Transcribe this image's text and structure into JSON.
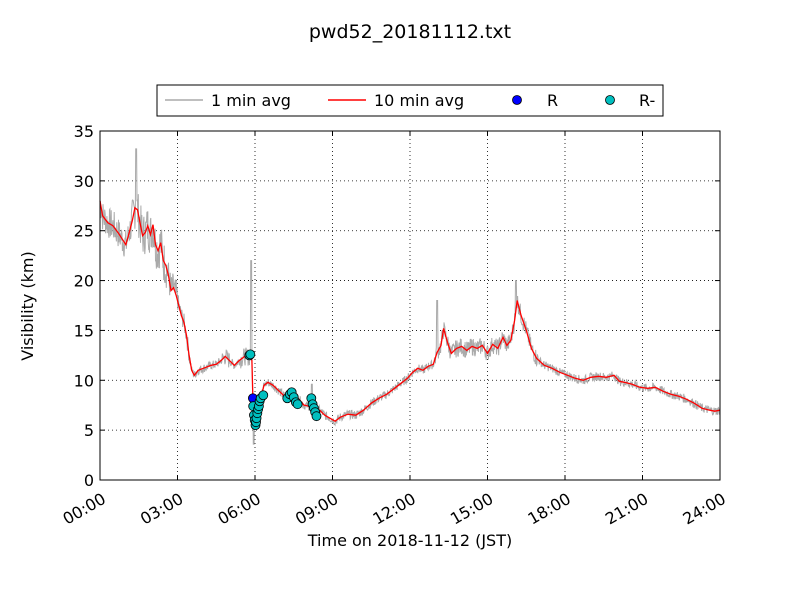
{
  "chart_data": {
    "type": "line",
    "title": "pwd52_20181112.txt",
    "xlabel": "Time on 2018-11-12 (JST)",
    "ylabel": "Visibility (km)",
    "xlim_hours": [
      0,
      24
    ],
    "ylim": [
      0,
      35
    ],
    "x_ticks": [
      {
        "h": 0,
        "label": "00:00"
      },
      {
        "h": 3,
        "label": "03:00"
      },
      {
        "h": 6,
        "label": "06:00"
      },
      {
        "h": 9,
        "label": "09:00"
      },
      {
        "h": 12,
        "label": "12:00"
      },
      {
        "h": 15,
        "label": "15:00"
      },
      {
        "h": 18,
        "label": "18:00"
      },
      {
        "h": 21,
        "label": "21:00"
      },
      {
        "h": 24,
        "label": "24:00"
      }
    ],
    "y_ticks": [
      0,
      5,
      10,
      15,
      20,
      25,
      30,
      35
    ],
    "grid": true,
    "legend_position": "top-center, above plot",
    "legend": [
      {
        "label": "1 min avg",
        "kind": "line",
        "color": "#aaaaaa"
      },
      {
        "label": "10 min avg",
        "kind": "line",
        "color": "#ff0000"
      },
      {
        "label": "R",
        "kind": "marker",
        "color": "#0000ff"
      },
      {
        "label": "R-",
        "kind": "marker",
        "color": "#00bfbf"
      }
    ],
    "series": [
      {
        "name": "10 min avg",
        "color": "#ff0000",
        "points": [
          [
            0.0,
            28.0
          ],
          [
            0.1,
            26.5
          ],
          [
            0.3,
            25.8
          ],
          [
            0.5,
            25.5
          ],
          [
            0.7,
            24.8
          ],
          [
            0.9,
            24.0
          ],
          [
            1.0,
            23.6
          ],
          [
            1.1,
            24.5
          ],
          [
            1.25,
            26.0
          ],
          [
            1.35,
            27.3
          ],
          [
            1.45,
            27.1
          ],
          [
            1.55,
            25.8
          ],
          [
            1.65,
            24.5
          ],
          [
            1.75,
            24.8
          ],
          [
            1.85,
            25.5
          ],
          [
            1.95,
            24.6
          ],
          [
            2.05,
            25.6
          ],
          [
            2.15,
            23.6
          ],
          [
            2.25,
            23.0
          ],
          [
            2.35,
            23.8
          ],
          [
            2.45,
            22.0
          ],
          [
            2.55,
            21.5
          ],
          [
            2.65,
            20.5
          ],
          [
            2.75,
            19.0
          ],
          [
            2.85,
            19.3
          ],
          [
            2.95,
            18.5
          ],
          [
            3.05,
            17.5
          ],
          [
            3.15,
            16.5
          ],
          [
            3.25,
            15.8
          ],
          [
            3.35,
            14.5
          ],
          [
            3.45,
            12.5
          ],
          [
            3.55,
            11.0
          ],
          [
            3.65,
            10.5
          ],
          [
            3.8,
            11.0
          ],
          [
            4.0,
            11.2
          ],
          [
            4.3,
            11.5
          ],
          [
            4.5,
            11.6
          ],
          [
            4.7,
            12.0
          ],
          [
            4.85,
            12.4
          ],
          [
            5.0,
            12.0
          ],
          [
            5.2,
            11.5
          ],
          [
            5.4,
            12.0
          ],
          [
            5.6,
            12.4
          ],
          [
            5.8,
            12.3
          ],
          [
            5.88,
            12.0
          ],
          [
            5.9,
            10.0
          ],
          [
            5.92,
            8.0
          ],
          [
            6.05,
            7.8
          ],
          [
            6.2,
            8.0
          ],
          [
            6.35,
            9.5
          ],
          [
            6.5,
            9.8
          ],
          [
            6.7,
            9.5
          ],
          [
            6.9,
            9.0
          ],
          [
            7.1,
            8.5
          ],
          [
            7.3,
            8.2
          ],
          [
            7.5,
            8.6
          ],
          [
            7.7,
            8.1
          ],
          [
            7.9,
            7.5
          ],
          [
            8.1,
            7.4
          ],
          [
            8.3,
            7.2
          ],
          [
            8.5,
            7.0
          ],
          [
            8.7,
            6.5
          ],
          [
            8.9,
            6.2
          ],
          [
            9.1,
            5.9
          ],
          [
            9.3,
            6.3
          ],
          [
            9.6,
            6.6
          ],
          [
            9.9,
            6.5
          ],
          [
            10.2,
            7.0
          ],
          [
            10.5,
            7.7
          ],
          [
            10.8,
            8.2
          ],
          [
            11.1,
            8.6
          ],
          [
            11.4,
            9.2
          ],
          [
            11.7,
            9.8
          ],
          [
            11.9,
            10.2
          ],
          [
            12.1,
            10.8
          ],
          [
            12.3,
            11.2
          ],
          [
            12.5,
            11.0
          ],
          [
            12.7,
            11.4
          ],
          [
            12.9,
            11.6
          ],
          [
            13.05,
            12.8
          ],
          [
            13.2,
            13.5
          ],
          [
            13.3,
            15.2
          ],
          [
            13.45,
            13.8
          ],
          [
            13.6,
            12.7
          ],
          [
            13.8,
            13.2
          ],
          [
            14.0,
            13.4
          ],
          [
            14.2,
            13.0
          ],
          [
            14.4,
            13.4
          ],
          [
            14.6,
            13.2
          ],
          [
            14.8,
            13.5
          ],
          [
            15.0,
            12.7
          ],
          [
            15.2,
            13.6
          ],
          [
            15.4,
            13.2
          ],
          [
            15.6,
            14.3
          ],
          [
            15.75,
            13.5
          ],
          [
            15.9,
            14.0
          ],
          [
            16.05,
            16.0
          ],
          [
            16.15,
            18.0
          ],
          [
            16.3,
            16.5
          ],
          [
            16.5,
            15.0
          ],
          [
            16.7,
            13.2
          ],
          [
            16.9,
            12.2
          ],
          [
            17.2,
            11.5
          ],
          [
            17.5,
            11.2
          ],
          [
            17.8,
            10.8
          ],
          [
            18.1,
            10.5
          ],
          [
            18.4,
            10.2
          ],
          [
            18.7,
            10.0
          ],
          [
            19.0,
            10.3
          ],
          [
            19.3,
            10.4
          ],
          [
            19.6,
            10.3
          ],
          [
            19.9,
            10.5
          ],
          [
            20.1,
            9.9
          ],
          [
            20.3,
            9.8
          ],
          [
            20.6,
            9.6
          ],
          [
            20.9,
            9.3
          ],
          [
            21.2,
            9.2
          ],
          [
            21.5,
            9.3
          ],
          [
            21.8,
            8.9
          ],
          [
            22.1,
            8.6
          ],
          [
            22.4,
            8.4
          ],
          [
            22.7,
            8.1
          ],
          [
            23.0,
            7.7
          ],
          [
            23.3,
            7.2
          ],
          [
            23.6,
            7.0
          ],
          [
            23.8,
            6.9
          ],
          [
            24.0,
            7.0
          ]
        ]
      },
      {
        "name": "R",
        "color": "#0000ff",
        "points": [
          [
            5.92,
            8.2
          ]
        ]
      },
      {
        "name": "R-",
        "color": "#00bfbf",
        "points": [
          [
            5.78,
            12.5
          ],
          [
            5.82,
            12.6
          ],
          [
            5.93,
            7.4
          ],
          [
            5.96,
            6.5
          ],
          [
            5.99,
            6.0
          ],
          [
            6.02,
            5.5
          ],
          [
            6.04,
            5.8
          ],
          [
            6.06,
            6.2
          ],
          [
            6.09,
            6.7
          ],
          [
            6.12,
            7.1
          ],
          [
            6.15,
            7.4
          ],
          [
            6.18,
            7.9
          ],
          [
            6.22,
            8.2
          ],
          [
            6.32,
            8.5
          ],
          [
            7.25,
            8.2
          ],
          [
            7.35,
            8.6
          ],
          [
            7.42,
            8.8
          ],
          [
            7.5,
            8.3
          ],
          [
            7.58,
            7.8
          ],
          [
            7.65,
            7.6
          ],
          [
            8.18,
            8.2
          ],
          [
            8.23,
            7.6
          ],
          [
            8.28,
            7.2
          ],
          [
            8.33,
            6.8
          ],
          [
            8.38,
            6.4
          ]
        ]
      }
    ]
  }
}
